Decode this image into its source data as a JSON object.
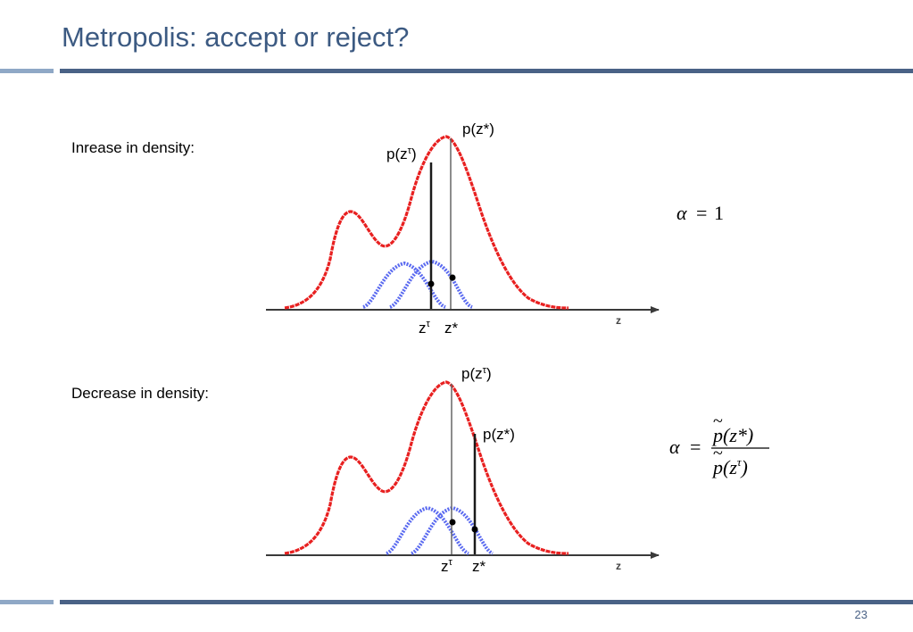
{
  "title": "Metropolis: accept or reject?",
  "page_number": "23",
  "colors": {
    "title": "#3c5a82",
    "rule_dark": "#4a6286",
    "rule_light": "#8fa8c6",
    "target_density": "#e82020",
    "proposal_density": "#5a6af0"
  },
  "panels": [
    {
      "label": "Inrease in density:",
      "current_label": "p(z",
      "current_sup": "τ",
      "current_close": ")",
      "proposed_label": "p(z*)",
      "tick_current": "z",
      "tick_current_sup": "τ",
      "tick_proposed": "z*",
      "axis_label": "z",
      "alpha_symbol": "α",
      "alpha_equals": "=",
      "alpha_value": "1"
    },
    {
      "label": "Decrease in density:",
      "current_label": "p(z",
      "current_sup": "τ",
      "current_close": ")",
      "proposed_label": "p(z*)",
      "tick_current": "z",
      "tick_current_sup": "τ",
      "tick_proposed": "z*",
      "axis_label": "z",
      "alpha_symbol": "α",
      "alpha_equals": "=",
      "ratio_numerator": "p(z*)",
      "ratio_denominator_base": "p(z",
      "ratio_denominator_sup": "τ",
      "ratio_denominator_close": ")",
      "tilde": "~"
    }
  ]
}
